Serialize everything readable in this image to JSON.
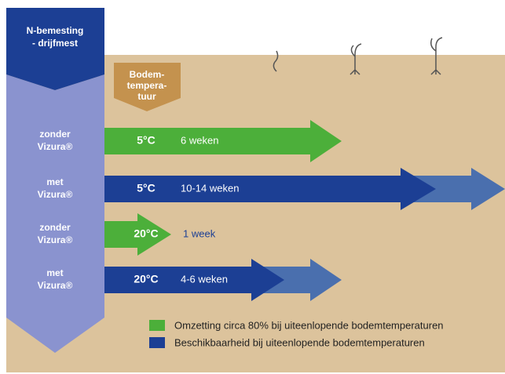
{
  "header": {
    "title_lines": [
      "N-bemesting",
      "- drijfmest"
    ]
  },
  "soil_temperature": {
    "lines": [
      "Bodem-",
      "tempera-",
      "tuur"
    ]
  },
  "rows": [
    {
      "label_lines": [
        "zonder",
        "Vizura®"
      ],
      "temperature": "5°C",
      "duration": "6 weken"
    },
    {
      "label_lines": [
        "met",
        "Vizura®"
      ],
      "temperature": "5°C",
      "duration": "10-14 weken"
    },
    {
      "label_lines": [
        "zonder",
        "Vizura®"
      ],
      "temperature": "20°C",
      "duration": "1 week"
    },
    {
      "label_lines": [
        "met",
        "Vizura®"
      ],
      "temperature": "20°C",
      "duration": "4-6 weken"
    }
  ],
  "legend": [
    {
      "label": "Omzetting circa 80% bij uiteenlopende bodemtemperaturen"
    },
    {
      "label": "Beschikbaarheid bij uiteenlopende bodemtemperaturen"
    }
  ]
}
